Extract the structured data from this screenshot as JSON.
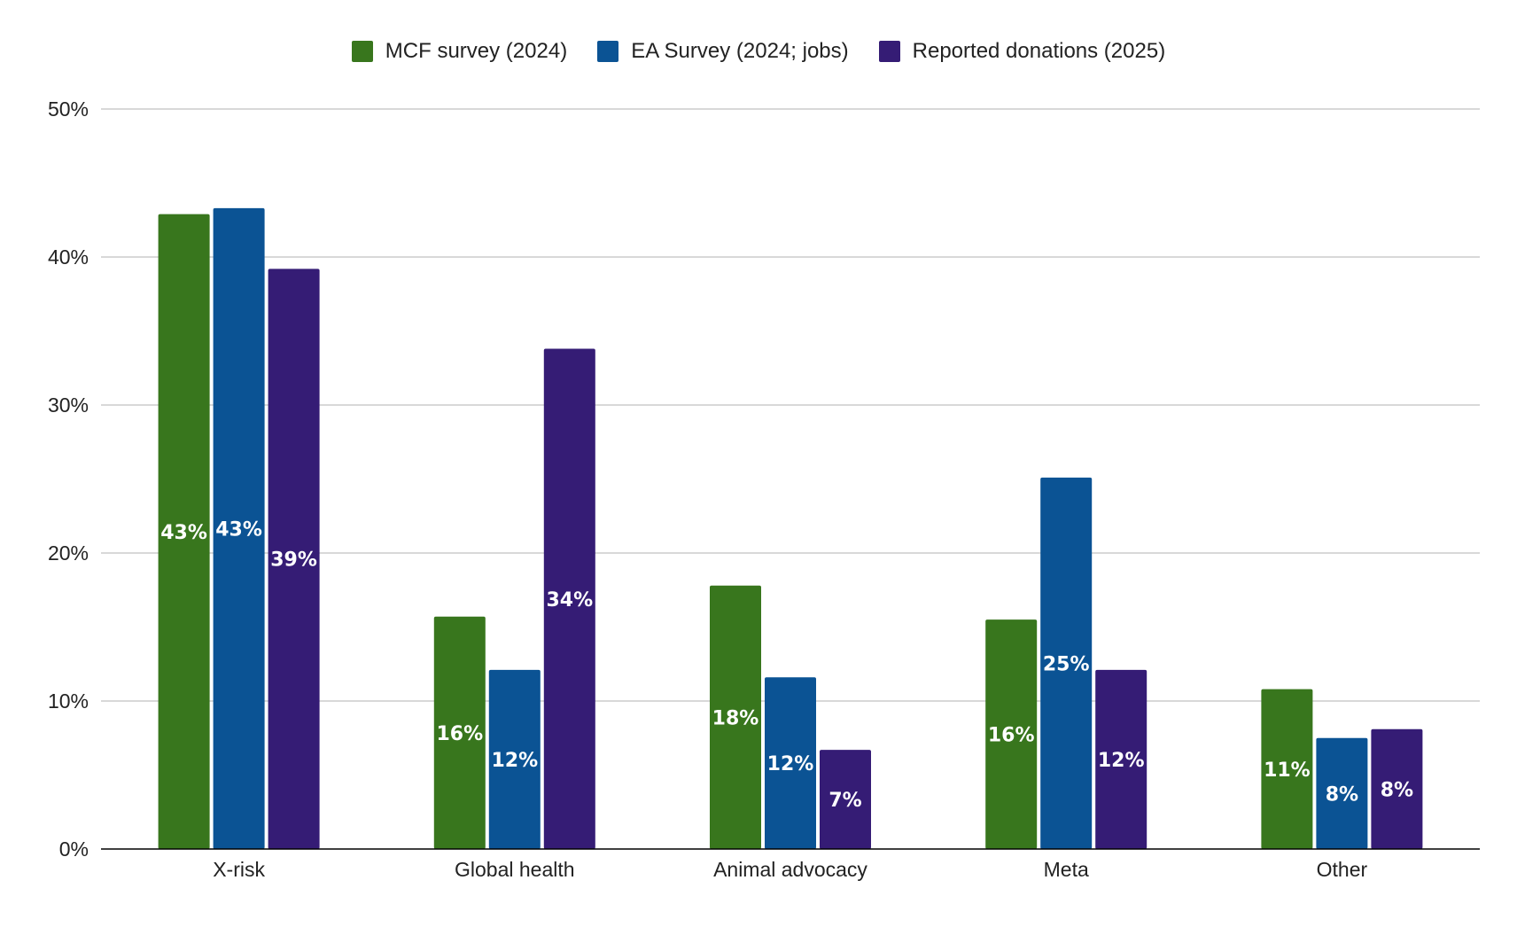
{
  "chart_data": {
    "type": "bar",
    "categories": [
      "X-risk",
      "Global health",
      "Animal advocacy",
      "Meta",
      "Other"
    ],
    "series": [
      {
        "name": "MCF survey (2024)",
        "color": "#38761d",
        "values": [
          42.9,
          15.7,
          17.8,
          15.5,
          10.8
        ],
        "labels": [
          "43%",
          "16%",
          "18%",
          "16%",
          "11%"
        ]
      },
      {
        "name": "EA Survey (2024; jobs)",
        "color": "#0b5394",
        "values": [
          43.3,
          12.1,
          11.6,
          25.1,
          7.5
        ],
        "labels": [
          "43%",
          "12%",
          "12%",
          "25%",
          "8%"
        ]
      },
      {
        "name": "Reported donations (2025)",
        "color": "#351c75",
        "values": [
          39.2,
          33.8,
          6.7,
          12.1,
          8.1
        ],
        "labels": [
          "39%",
          "34%",
          "7%",
          "12%",
          "8%"
        ]
      }
    ],
    "yticks": [
      "0%",
      "10%",
      "20%",
      "30%",
      "40%",
      "50%"
    ],
    "ylim": [
      0,
      50
    ],
    "title": "",
    "xlabel": "",
    "ylabel": "",
    "grid": true,
    "legend_position": "top-center",
    "gridline_color": "#cccccc",
    "axis_color": "#000000"
  }
}
